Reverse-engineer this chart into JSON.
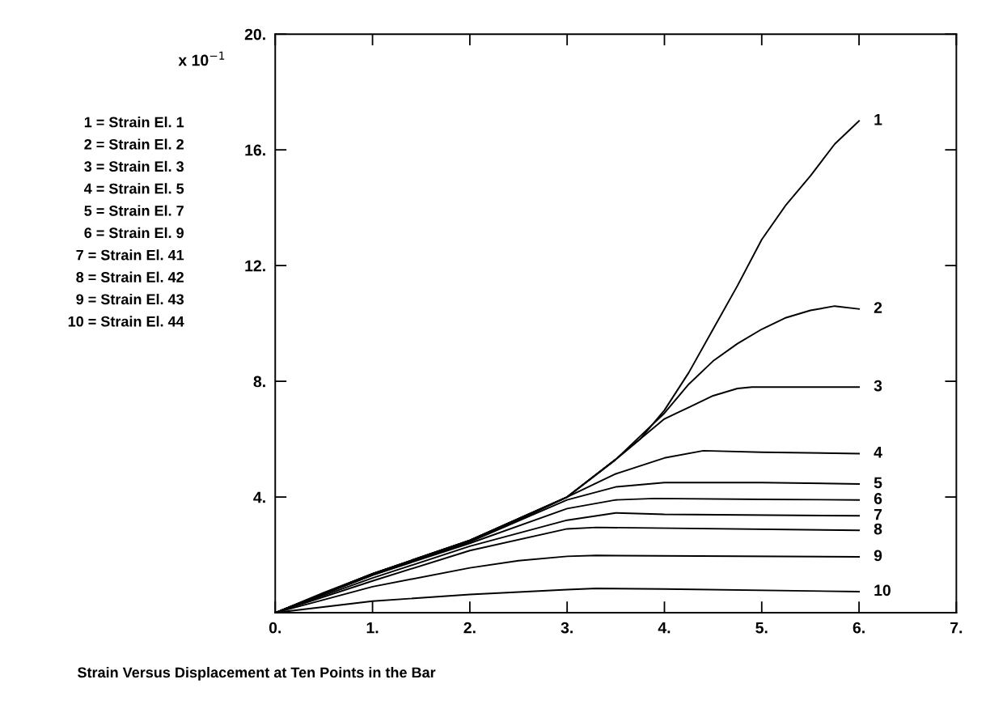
{
  "chart_data": {
    "type": "line",
    "title": "Strain Versus Displacement at Ten Points in the Bar",
    "annotations": [
      "x 10$^{−1}$",
      "1 = Strain El. 1",
      "2 = Strain El. 2",
      "3 = Strain El. 3",
      "4 = Strain El. 5",
      "5 = Strain El. 7",
      "6 = Strain El. 9",
      "7 = Strain El. 41",
      "8 = Strain El. 42",
      "9 = Strain El. 43",
      "10 = Strain El. 44"
    ],
    "xlim": [
      0,
      7
    ],
    "ylim": [
      0,
      20
    ],
    "xticks": [
      {
        "value": 0,
        "label": "0."
      },
      {
        "value": 1,
        "label": "1."
      },
      {
        "value": 2,
        "label": "2."
      },
      {
        "value": 3,
        "label": "3."
      },
      {
        "value": 4,
        "label": "4."
      },
      {
        "value": 5,
        "label": "5."
      },
      {
        "value": 6,
        "label": "6."
      },
      {
        "value": 7,
        "label": "7."
      }
    ],
    "yticks": [
      {
        "value": 4,
        "label": "4."
      },
      {
        "value": 8,
        "label": "8."
      },
      {
        "value": 12,
        "label": "12."
      },
      {
        "value": 16,
        "label": "16."
      },
      {
        "value": 20,
        "label": "20."
      }
    ],
    "grid": false,
    "legend": false,
    "marker": "none",
    "line_style": "solid",
    "series": [
      {
        "name": "1",
        "color": "#000000",
        "x": [
          0,
          0.5,
          1,
          1.5,
          2,
          2.5,
          3,
          3.5,
          3.75,
          4,
          4.25,
          4.5,
          4.75,
          5,
          5.25,
          5.5,
          5.75,
          6
        ],
        "values": [
          0,
          0.7,
          1.35,
          1.9,
          2.5,
          3.2,
          4.0,
          5.3,
          6.0,
          7.0,
          8.3,
          9.8,
          11.3,
          12.9,
          14.1,
          15.1,
          16.2,
          17.0
        ]
      },
      {
        "name": "2",
        "color": "#000000",
        "x": [
          0,
          1,
          2,
          3,
          3.5,
          4,
          4.25,
          4.5,
          4.75,
          5,
          5.25,
          5.5,
          5.75,
          6
        ],
        "values": [
          0,
          1.35,
          2.5,
          4.0,
          5.3,
          6.9,
          7.9,
          8.7,
          9.3,
          9.8,
          10.2,
          10.45,
          10.6,
          10.5
        ]
      },
      {
        "name": "3",
        "color": "#000000",
        "x": [
          0,
          1,
          2,
          3,
          3.5,
          3.75,
          4,
          4.25,
          4.5,
          4.75,
          4.9,
          6
        ],
        "values": [
          0,
          1.35,
          2.5,
          4.0,
          5.3,
          6.0,
          6.7,
          7.1,
          7.5,
          7.75,
          7.8,
          7.8
        ]
      },
      {
        "name": "4",
        "color": "#000000",
        "x": [
          0,
          1,
          2,
          3,
          3.5,
          4,
          4.4,
          5,
          6
        ],
        "values": [
          0,
          1.35,
          2.5,
          4.0,
          4.8,
          5.35,
          5.6,
          5.55,
          5.5
        ]
      },
      {
        "name": "5",
        "color": "#000000",
        "x": [
          0,
          1,
          2,
          3,
          3.5,
          4,
          5,
          6
        ],
        "values": [
          0,
          1.3,
          2.45,
          3.9,
          4.35,
          4.5,
          4.5,
          4.45
        ]
      },
      {
        "name": "6",
        "color": "#000000",
        "x": [
          0,
          1,
          2,
          3,
          3.5,
          3.9,
          5,
          6
        ],
        "values": [
          0,
          1.3,
          2.4,
          3.6,
          3.9,
          3.95,
          3.92,
          3.9
        ]
      },
      {
        "name": "7",
        "color": "#000000",
        "x": [
          0,
          1,
          2,
          3,
          3.5,
          4,
          6
        ],
        "values": [
          0,
          1.2,
          2.3,
          3.2,
          3.45,
          3.4,
          3.35
        ]
      },
      {
        "name": "8",
        "color": "#000000",
        "x": [
          0,
          1,
          2,
          3,
          3.3,
          6
        ],
        "values": [
          0,
          1.1,
          2.15,
          2.9,
          2.95,
          2.85
        ]
      },
      {
        "name": "9",
        "color": "#000000",
        "x": [
          0,
          1,
          2,
          2.5,
          3,
          3.3,
          6
        ],
        "values": [
          0,
          0.9,
          1.55,
          1.8,
          1.95,
          1.98,
          1.93
        ]
      },
      {
        "name": "10",
        "color": "#000000",
        "x": [
          0,
          1,
          2,
          3,
          3.3,
          4,
          6
        ],
        "values": [
          0,
          0.4,
          0.63,
          0.8,
          0.84,
          0.82,
          0.73
        ]
      }
    ]
  }
}
